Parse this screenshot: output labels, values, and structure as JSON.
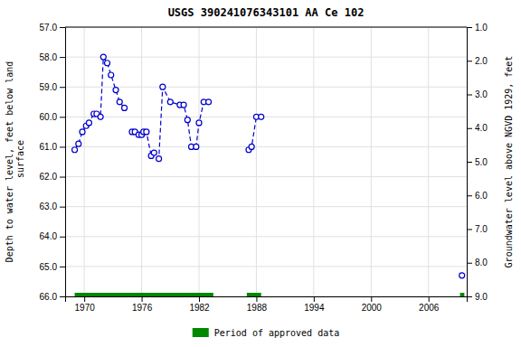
{
  "chart_data": {
    "type": "line",
    "title": "USGS 390241076343101 AA Ce 102",
    "ylabel": "Depth to water level, feet below land\n surface",
    "y2label": "Groundwater level above NGVD 1929, feet",
    "xlim": [
      1968,
      2010
    ],
    "ylim": [
      66.0,
      57.0
    ],
    "y2lim": [
      9.0,
      1.0
    ],
    "xticks": [
      1970,
      1976,
      1982,
      1988,
      1994,
      2000,
      2006
    ],
    "yticks": [
      {
        "value": 57.0,
        "label": "57.0"
      },
      {
        "value": 58.0,
        "label": "58.0"
      },
      {
        "value": 59.0,
        "label": "59.0"
      },
      {
        "value": 60.0,
        "label": "60.0"
      },
      {
        "value": 61.0,
        "label": "61.0"
      },
      {
        "value": 62.0,
        "label": "62.0"
      },
      {
        "value": 63.0,
        "label": "63.0"
      },
      {
        "value": 64.0,
        "label": "64.0"
      },
      {
        "value": 65.0,
        "label": "65.0"
      },
      {
        "value": 66.0,
        "label": "66.0"
      }
    ],
    "y2ticks": [
      {
        "value": 9.0,
        "label": "9.0"
      },
      {
        "value": 8.0,
        "label": "8.0"
      },
      {
        "value": 7.0,
        "label": "7.0"
      },
      {
        "value": 6.0,
        "label": "6.0"
      },
      {
        "value": 5.0,
        "label": "5.0"
      },
      {
        "value": 4.0,
        "label": "4.0"
      },
      {
        "value": 3.0,
        "label": "3.0"
      },
      {
        "value": 2.0,
        "label": "2.0"
      },
      {
        "value": 1.0,
        "label": "1.0"
      }
    ],
    "grid": true,
    "legend": "bottom",
    "x": [
      1969.0,
      1969.4,
      1969.8,
      1970.2,
      1970.5,
      1971.0,
      1971.3,
      1971.7,
      1972.0,
      1972.4,
      1972.8,
      1973.3,
      1973.7,
      1974.2,
      null,
      1975.0,
      1975.3,
      1975.7,
      1976.0,
      1976.2,
      1976.5,
      1977.0,
      1977.3,
      1977.8,
      1978.2,
      1979.0,
      1980.0,
      1980.4,
      1980.8,
      1981.2,
      1981.7,
      1982.0,
      1982.5,
      1983.0,
      null,
      1987.2,
      1987.5,
      1988.0,
      1988.5,
      null,
      2009.5
    ],
    "series": [
      {
        "color": "#0000cc",
        "marker": "circle",
        "line_style": "dashed",
        "values": [
          61.1,
          60.9,
          60.5,
          60.3,
          60.2,
          59.9,
          59.9,
          60.0,
          58.0,
          58.2,
          58.6,
          59.1,
          59.5,
          59.7,
          null,
          60.5,
          60.5,
          60.6,
          60.6,
          60.5,
          60.5,
          61.3,
          61.2,
          61.4,
          59.0,
          59.5,
          59.6,
          59.6,
          60.1,
          61.0,
          61.0,
          60.2,
          59.5,
          59.5,
          null,
          61.1,
          61.0,
          60.0,
          60.0,
          null,
          65.3
        ]
      }
    ],
    "approved": {
      "name": "Period of approved data",
      "color": "#008800",
      "y": 66.0,
      "periods": [
        [
          1969.0,
          1983.5
        ],
        [
          1987.0,
          1988.5
        ],
        [
          2009.3,
          2009.75
        ]
      ]
    }
  }
}
